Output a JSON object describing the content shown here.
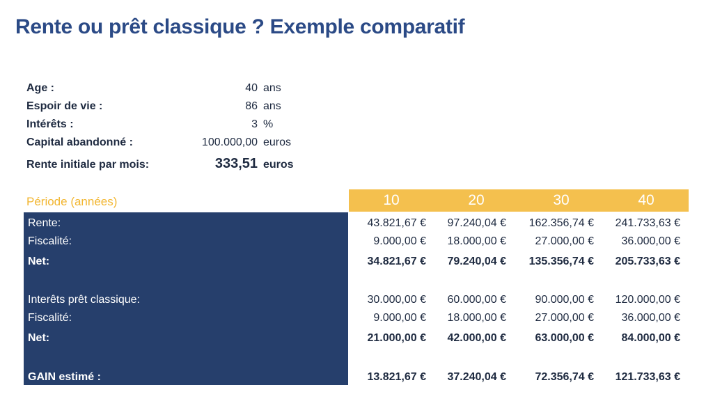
{
  "title": "Rente ou prêt classique ? Exemple comparatif",
  "params": [
    {
      "label": "Age :",
      "value": "40",
      "unit": "ans"
    },
    {
      "label": "Espoir de vie :",
      "value": "86",
      "unit": "ans"
    },
    {
      "label": "Intérêts :",
      "value": "3",
      "unit": "%"
    },
    {
      "label": "Capital abandonné :",
      "value": "100.000,00",
      "unit": "euros"
    },
    {
      "label": "Rente initiale par mois:",
      "value": "333,51",
      "unit": "euros"
    }
  ],
  "table": {
    "period_label": "Période (années)",
    "years": [
      "10",
      "20",
      "30",
      "40"
    ],
    "rows": [
      {
        "label": "Rente:",
        "bold": false,
        "values": [
          "43.821,67 €",
          "97.240,04 €",
          "162.356,74 €",
          "241.733,63 €"
        ]
      },
      {
        "label": "Fiscalité:",
        "bold": false,
        "values": [
          "9.000,00 €",
          "18.000,00 €",
          "27.000,00 €",
          "36.000,00 €"
        ]
      },
      {
        "label": "Net:",
        "bold": true,
        "values": [
          "34.821,67 €",
          "79.240,04 €",
          "135.356,74 €",
          "205.733,63 €"
        ]
      },
      {
        "label": "Interêts prêt classique:",
        "bold": false,
        "values": [
          "30.000,00 €",
          "60.000,00 €",
          "90.000,00 €",
          "120.000,00 €"
        ]
      },
      {
        "label": "Fiscalité:",
        "bold": false,
        "values": [
          "9.000,00 €",
          "18.000,00 €",
          "27.000,00 €",
          "36.000,00 €"
        ]
      },
      {
        "label": "Net:",
        "bold": true,
        "values": [
          "21.000,00 €",
          "42.000,00 €",
          "63.000,00 €",
          "84.000,00 €"
        ]
      },
      {
        "label": "GAIN estimé :",
        "bold": true,
        "values": [
          "13.821,67 €",
          "37.240,04 €",
          "72.356,74 €",
          "121.733,63 €"
        ]
      }
    ]
  }
}
